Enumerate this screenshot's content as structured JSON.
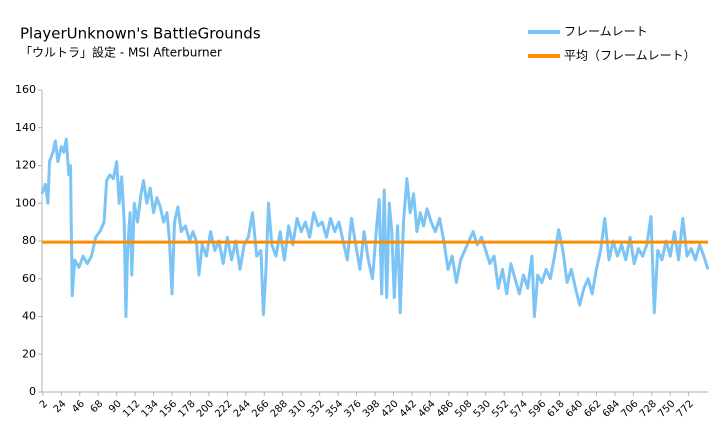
{
  "chart_data": {
    "type": "line",
    "title": "PlayerUnknown's BattleGrounds",
    "subtitle": "「ウルトラ」設定  - MSI Afterburner",
    "xlim": [
      1,
      795
    ],
    "xticks": [
      2,
      24,
      46,
      68,
      90,
      112,
      134,
      156,
      178,
      200,
      222,
      244,
      266,
      288,
      310,
      332,
      354,
      376,
      398,
      420,
      442,
      464,
      486,
      508,
      530,
      552,
      574,
      596,
      618,
      640,
      662,
      684,
      706,
      728,
      750,
      772
    ],
    "ylim": [
      0,
      160
    ],
    "yticks": [
      0,
      20,
      40,
      60,
      80,
      100,
      120,
      140,
      160
    ],
    "grid": false,
    "legend": "top-right",
    "series": [
      {
        "name": "フレームレート",
        "color": "#7cc4f5",
        "x": [
          1,
          5,
          8,
          10,
          14,
          17,
          20,
          24,
          27,
          30,
          33,
          35,
          37,
          40,
          45,
          50,
          55,
          60,
          65,
          70,
          75,
          78,
          82,
          86,
          90,
          93,
          96,
          99,
          101,
          103,
          106,
          108,
          111,
          115,
          119,
          122,
          126,
          130,
          134,
          138,
          142,
          146,
          150,
          153,
          156,
          159,
          163,
          167,
          172,
          177,
          181,
          185,
          188,
          192,
          197,
          202,
          207,
          212,
          217,
          222,
          227,
          232,
          237,
          242,
          247,
          252,
          257,
          262,
          265,
          268,
          271,
          275,
          280,
          285,
          290,
          295,
          300,
          305,
          310,
          315,
          320,
          325,
          330,
          335,
          340,
          345,
          350,
          355,
          360,
          365,
          370,
          375,
          380,
          385,
          390,
          395,
          400,
          403,
          406,
          409,
          412,
          415,
          418,
          421,
          425,
          428,
          432,
          436,
          440,
          444,
          448,
          452,
          456,
          460,
          465,
          470,
          475,
          480,
          485,
          490,
          495,
          500,
          505,
          510,
          515,
          520,
          525,
          530,
          535,
          540,
          545,
          550,
          555,
          560,
          565,
          570,
          575,
          580,
          585,
          588,
          592,
          597,
          602,
          607,
          612,
          617,
          622,
          627,
          632,
          637,
          642,
          647,
          652,
          657,
          662,
          667,
          672,
          677,
          682,
          687,
          692,
          697,
          702,
          707,
          712,
          717,
          722,
          727,
          731,
          735,
          740,
          745,
          750,
          755,
          760,
          765,
          770,
          775,
          780,
          785,
          790,
          795
        ],
        "values": [
          105,
          110,
          100,
          122,
          127,
          133,
          122,
          130,
          127,
          134,
          115,
          120,
          51,
          70,
          66,
          72,
          68,
          72,
          82,
          85,
          90,
          112,
          115,
          113,
          122,
          100,
          114,
          90,
          40,
          75,
          95,
          62,
          100,
          90,
          105,
          112,
          100,
          108,
          95,
          103,
          98,
          90,
          95,
          80,
          52,
          90,
          98,
          85,
          88,
          80,
          85,
          80,
          62,
          78,
          72,
          85,
          75,
          80,
          68,
          82,
          70,
          80,
          65,
          78,
          82,
          95,
          72,
          75,
          41,
          65,
          100,
          78,
          72,
          85,
          70,
          88,
          78,
          92,
          85,
          90,
          82,
          95,
          88,
          90,
          82,
          92,
          85,
          90,
          80,
          70,
          92,
          78,
          65,
          85,
          70,
          60,
          88,
          102,
          52,
          107,
          50,
          100,
          85,
          50,
          88,
          42,
          90,
          113,
          95,
          105,
          85,
          95,
          88,
          97,
          90,
          85,
          92,
          80,
          65,
          72,
          58,
          70,
          75,
          80,
          85,
          78,
          82,
          75,
          68,
          72,
          55,
          65,
          52,
          68,
          60,
          52,
          62,
          55,
          72,
          40,
          62,
          58,
          65,
          60,
          72,
          86,
          75,
          58,
          65,
          55,
          46,
          55,
          60,
          52,
          65,
          75,
          92,
          70,
          80,
          72,
          78,
          70,
          82,
          68,
          76,
          72,
          78,
          93,
          42,
          75,
          70,
          80,
          72,
          85,
          70,
          92,
          72,
          76,
          70,
          78,
          72,
          65
        ]
      },
      {
        "name": "平均（フレームレート）",
        "color": "#ff8c00",
        "x": [
          1,
          795
        ],
        "values": [
          79.4,
          79.4
        ]
      }
    ]
  }
}
